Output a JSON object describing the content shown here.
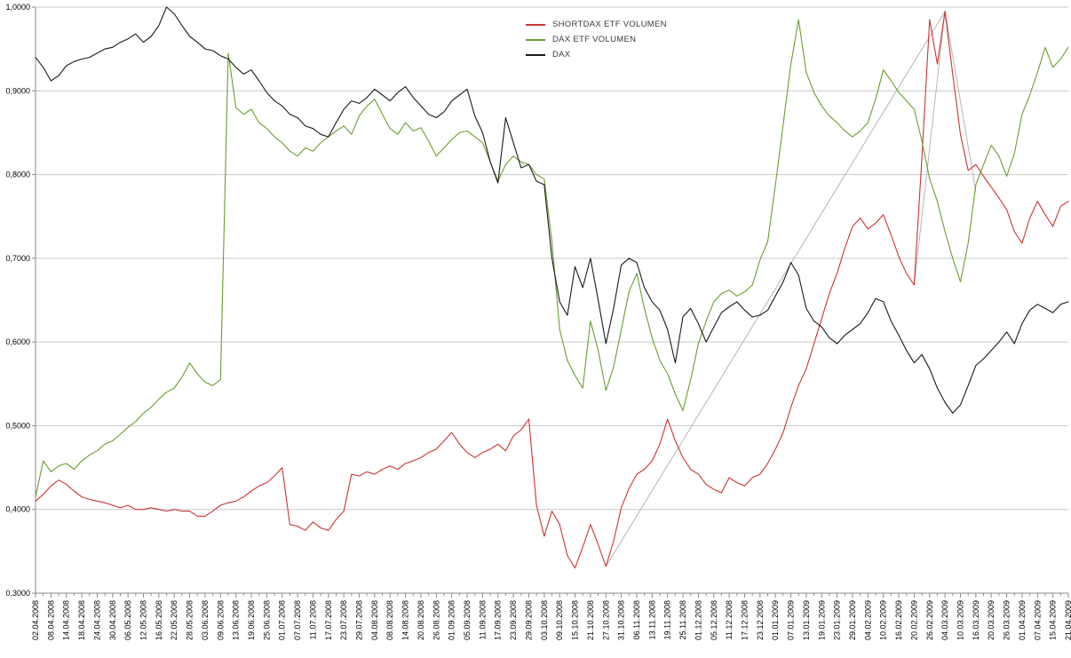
{
  "chart_data": {
    "type": "line",
    "title": "",
    "xlabel": "",
    "ylabel": "",
    "grid": "horizontal",
    "legend_position": "top-center",
    "ylim": [
      0.3,
      1.0
    ],
    "y_ticks": [
      0.3,
      0.4,
      0.5,
      0.6,
      0.7,
      0.8,
      0.9,
      1.0
    ],
    "y_tick_labels": [
      "0,3000",
      "0,4000",
      "0,5000",
      "0,6000",
      "0,7000",
      "0,8000",
      "0,9000",
      "1,0000"
    ],
    "colors": {
      "grid": "#c9c9c9",
      "axis": "#8a8a8a",
      "trend": "#b5b5b5",
      "background": "#ffffff",
      "text": "#000000"
    },
    "sampling_note": "values estimated from plot every 2 trading days; even indices align with x_tick_labels",
    "x_tick_labels": [
      "02.04.2008",
      "08.04.2008",
      "14.04.2008",
      "18.04.2008",
      "24.04.2008",
      "30.04.2008",
      "06.05.2008",
      "12.05.2008",
      "16.05.2008",
      "22.05.2008",
      "28.05.2008",
      "03.06.2008",
      "09.06.2008",
      "13.06.2008",
      "19.06.2008",
      "25.06.2008",
      "01.07.2008",
      "07.07.2008",
      "11.07.2008",
      "17.07.2008",
      "23.07.2008",
      "29.07.2008",
      "04.08.2008",
      "08.08.2008",
      "14.08.2008",
      "20.08.2008",
      "26.08.2008",
      "01.09.2008",
      "05.09.2008",
      "11.09.2008",
      "17.09.2008",
      "23.09.2008",
      "29.09.2008",
      "03.10.2008",
      "09.10.2008",
      "15.10.2008",
      "21.10.2008",
      "27.10.2008",
      "31.10.2008",
      "06.11.2008",
      "13.11.2008",
      "19.11.2008",
      "25.11.2008",
      "01.12.2008",
      "05.12.2008",
      "11.12.2008",
      "17.12.2008",
      "23.12.2008",
      "01.01.2009",
      "07.01.2009",
      "13.01.2009",
      "19.01.2009",
      "23.01.2009",
      "29.01.2009",
      "04.02.2009",
      "10.02.2009",
      "16.02.2009",
      "20.02.2009",
      "26.02.2009",
      "04.03.2009",
      "10.03.2009",
      "16.03.2009",
      "20.03.2009",
      "26.03.2009",
      "01.04.2009",
      "07.04.2009",
      "15.04.2009",
      "21.04.2009"
    ],
    "series": [
      {
        "name": "SHORTDAX ETF VOLUMEN",
        "color": "#cc3333",
        "values": [
          0.41,
          0.418,
          0.428,
          0.435,
          0.43,
          0.422,
          0.415,
          0.412,
          0.41,
          0.408,
          0.405,
          0.402,
          0.405,
          0.4,
          0.4,
          0.402,
          0.4,
          0.398,
          0.4,
          0.398,
          0.398,
          0.392,
          0.392,
          0.398,
          0.405,
          0.408,
          0.41,
          0.415,
          0.422,
          0.428,
          0.432,
          0.44,
          0.45,
          0.382,
          0.38,
          0.375,
          0.385,
          0.378,
          0.375,
          0.388,
          0.398,
          0.442,
          0.44,
          0.445,
          0.442,
          0.448,
          0.452,
          0.448,
          0.455,
          0.458,
          0.462,
          0.468,
          0.472,
          0.482,
          0.492,
          0.478,
          0.468,
          0.462,
          0.468,
          0.472,
          0.478,
          0.47,
          0.488,
          0.495,
          0.508,
          0.405,
          0.368,
          0.398,
          0.382,
          0.345,
          0.33,
          0.355,
          0.382,
          0.358,
          0.332,
          0.362,
          0.402,
          0.425,
          0.442,
          0.448,
          0.458,
          0.478,
          0.508,
          0.482,
          0.462,
          0.448,
          0.442,
          0.43,
          0.424,
          0.42,
          0.438,
          0.432,
          0.428,
          0.438,
          0.442,
          0.455,
          0.472,
          0.492,
          0.522,
          0.548,
          0.568,
          0.598,
          0.628,
          0.658,
          0.682,
          0.712,
          0.738,
          0.748,
          0.735,
          0.742,
          0.752,
          0.728,
          0.702,
          0.682,
          0.668,
          0.82,
          0.985,
          0.932,
          0.995,
          0.92,
          0.848,
          0.805,
          0.812,
          0.798,
          0.785,
          0.772,
          0.758,
          0.732,
          0.718,
          0.748,
          0.768,
          0.752,
          0.738,
          0.762,
          0.768
        ]
      },
      {
        "name": "DAX ETF VOLUMEN",
        "color": "#6b9e2f",
        "values": [
          0.415,
          0.458,
          0.445,
          0.452,
          0.455,
          0.448,
          0.458,
          0.465,
          0.47,
          0.478,
          0.482,
          0.49,
          0.498,
          0.505,
          0.515,
          0.522,
          0.532,
          0.54,
          0.545,
          0.558,
          0.575,
          0.562,
          0.552,
          0.548,
          0.555,
          0.945,
          0.88,
          0.872,
          0.878,
          0.862,
          0.855,
          0.845,
          0.838,
          0.828,
          0.822,
          0.832,
          0.828,
          0.838,
          0.845,
          0.852,
          0.858,
          0.848,
          0.87,
          0.882,
          0.89,
          0.872,
          0.855,
          0.848,
          0.862,
          0.852,
          0.856,
          0.84,
          0.822,
          0.832,
          0.842,
          0.85,
          0.852,
          0.845,
          0.838,
          0.815,
          0.792,
          0.812,
          0.822,
          0.815,
          0.812,
          0.8,
          0.795,
          0.72,
          0.615,
          0.578,
          0.56,
          0.545,
          0.625,
          0.59,
          0.542,
          0.57,
          0.615,
          0.66,
          0.682,
          0.64,
          0.605,
          0.578,
          0.562,
          0.538,
          0.518,
          0.555,
          0.598,
          0.625,
          0.648,
          0.658,
          0.662,
          0.655,
          0.66,
          0.668,
          0.698,
          0.72,
          0.788,
          0.86,
          0.932,
          0.985,
          0.922,
          0.898,
          0.882,
          0.87,
          0.862,
          0.852,
          0.845,
          0.852,
          0.862,
          0.89,
          0.925,
          0.912,
          0.898,
          0.888,
          0.878,
          0.84,
          0.795,
          0.768,
          0.732,
          0.7,
          0.672,
          0.718,
          0.788,
          0.812,
          0.835,
          0.822,
          0.798,
          0.825,
          0.872,
          0.895,
          0.922,
          0.952,
          0.928,
          0.938,
          0.952
        ]
      },
      {
        "name": "DAX",
        "color": "#1a1a1a",
        "values": [
          0.94,
          0.928,
          0.912,
          0.918,
          0.93,
          0.935,
          0.938,
          0.94,
          0.945,
          0.95,
          0.952,
          0.958,
          0.962,
          0.968,
          0.958,
          0.965,
          0.978,
          1.0,
          0.992,
          0.978,
          0.965,
          0.958,
          0.95,
          0.948,
          0.942,
          0.938,
          0.928,
          0.92,
          0.925,
          0.912,
          0.898,
          0.888,
          0.882,
          0.872,
          0.868,
          0.858,
          0.855,
          0.848,
          0.845,
          0.862,
          0.878,
          0.888,
          0.885,
          0.892,
          0.902,
          0.895,
          0.888,
          0.898,
          0.905,
          0.892,
          0.882,
          0.872,
          0.868,
          0.875,
          0.888,
          0.895,
          0.902,
          0.87,
          0.85,
          0.815,
          0.79,
          0.868,
          0.838,
          0.808,
          0.812,
          0.792,
          0.788,
          0.7,
          0.648,
          0.632,
          0.69,
          0.665,
          0.7,
          0.65,
          0.598,
          0.64,
          0.692,
          0.7,
          0.695,
          0.665,
          0.648,
          0.638,
          0.615,
          0.575,
          0.63,
          0.64,
          0.622,
          0.6,
          0.618,
          0.635,
          0.642,
          0.648,
          0.638,
          0.63,
          0.632,
          0.638,
          0.655,
          0.672,
          0.695,
          0.68,
          0.64,
          0.625,
          0.618,
          0.605,
          0.598,
          0.608,
          0.615,
          0.622,
          0.635,
          0.652,
          0.648,
          0.625,
          0.608,
          0.59,
          0.575,
          0.585,
          0.568,
          0.545,
          0.528,
          0.515,
          0.525,
          0.548,
          0.572,
          0.58,
          0.59,
          0.6,
          0.612,
          0.598,
          0.622,
          0.638,
          0.645,
          0.64,
          0.635,
          0.645,
          0.648
        ]
      }
    ],
    "trendlines": [
      {
        "from_label": "27.10.2008",
        "from_value": 0.332,
        "to_label": "04.03.2009",
        "to_value": 0.995
      },
      {
        "from_label": "20.02.2009",
        "from_value": 0.668,
        "to_label": "04.03.2009",
        "to_value": 0.995
      },
      {
        "from_label": "04.03.2009",
        "from_value": 0.995,
        "to_label": "16.03.2009",
        "to_value": 0.78
      }
    ]
  }
}
